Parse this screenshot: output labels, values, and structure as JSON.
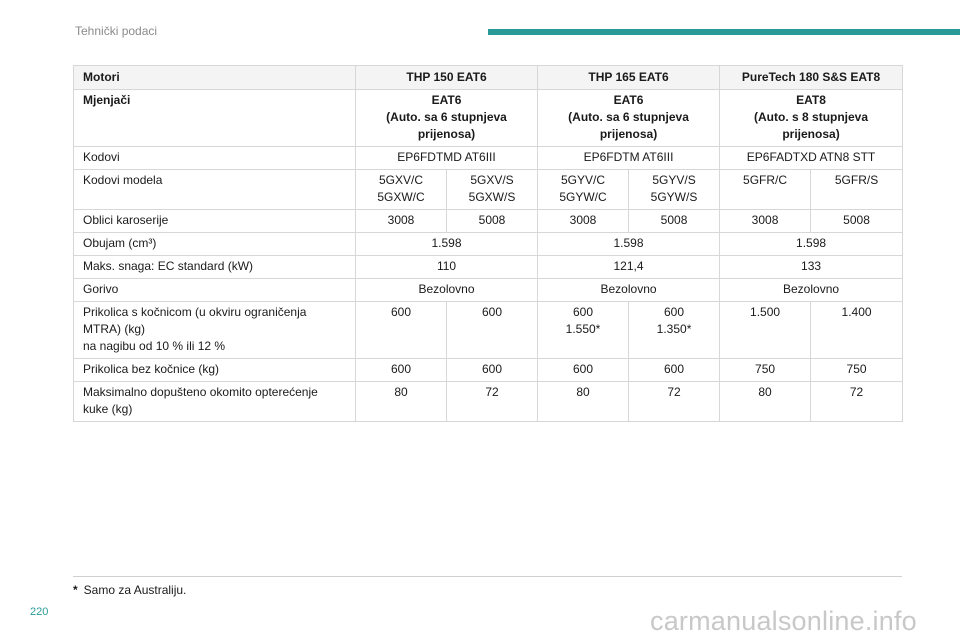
{
  "header": {
    "section": "Tehnički podaci"
  },
  "table": {
    "motori": {
      "label": "Motori",
      "col1": "THP 150 EAT6",
      "col2": "THP 165 EAT6",
      "col3": "PureTech 180 S&S EAT8"
    },
    "mjenjaci": {
      "label": "Mjenjači",
      "col1": "EAT6\n(Auto. sa 6 stupnjeva\nprijenosa)",
      "col2": "EAT6\n(Auto. sa 6 stupnjeva\nprijenosa)",
      "col3": "EAT8\n(Auto. s 8 stupnjeva\nprijenosa)"
    },
    "kodovi": {
      "label": "Kodovi",
      "col1": "EP6FDTMD AT6III",
      "col2": "EP6FDTM AT6III",
      "col3": "EP6FADTXD ATN8 STT"
    },
    "kodovi_modela": {
      "label": "Kodovi modela",
      "values": [
        "5GXV/C\n5GXW/C",
        "5GXV/S\n5GXW/S",
        "5GYV/C\n5GYW/C",
        "5GYV/S\n5GYW/S",
        "5GFR/C",
        "5GFR/S"
      ]
    },
    "oblici": {
      "label": "Oblici karoserije",
      "values": [
        "3008",
        "5008",
        "3008",
        "5008",
        "3008",
        "5008"
      ]
    },
    "obujam": {
      "label": "Obujam (cm³)",
      "col1": "1.598",
      "col2": "1.598",
      "col3": "1.598"
    },
    "snaga": {
      "label": "Maks. snaga: EC standard (kW)",
      "col1": "110",
      "col2": "121,4",
      "col3": "133"
    },
    "gorivo": {
      "label": "Gorivo",
      "col1": "Bezolovno",
      "col2": "Bezolovno",
      "col3": "Bezolovno"
    },
    "prikolica_kocnica": {
      "label": "Prikolica s kočnicom (u okviru ograničenja\nMTRA) (kg)\nna nagibu od 10 % ili 12 %",
      "values": [
        "600",
        "600",
        "600\n1.550*",
        "600\n1.350*",
        "1.500",
        "1.400"
      ]
    },
    "prikolica_bez": {
      "label": "Prikolica bez kočnice (kg)",
      "values": [
        "600",
        "600",
        "600",
        "600",
        "750",
        "750"
      ]
    },
    "opterecenje": {
      "label": "Maksimalno dopušteno okomito opterećenje\nkuke (kg)",
      "values": [
        "80",
        "72",
        "80",
        "72",
        "80",
        "72"
      ]
    }
  },
  "footnote": {
    "marker": "*",
    "text": "Samo za Australiju."
  },
  "page_number": "220",
  "watermark": "carmanualsonline.info",
  "colors": {
    "accent": "#2a9a98",
    "header_bg": "#f4f4f4",
    "border": "#d7d7d7"
  }
}
